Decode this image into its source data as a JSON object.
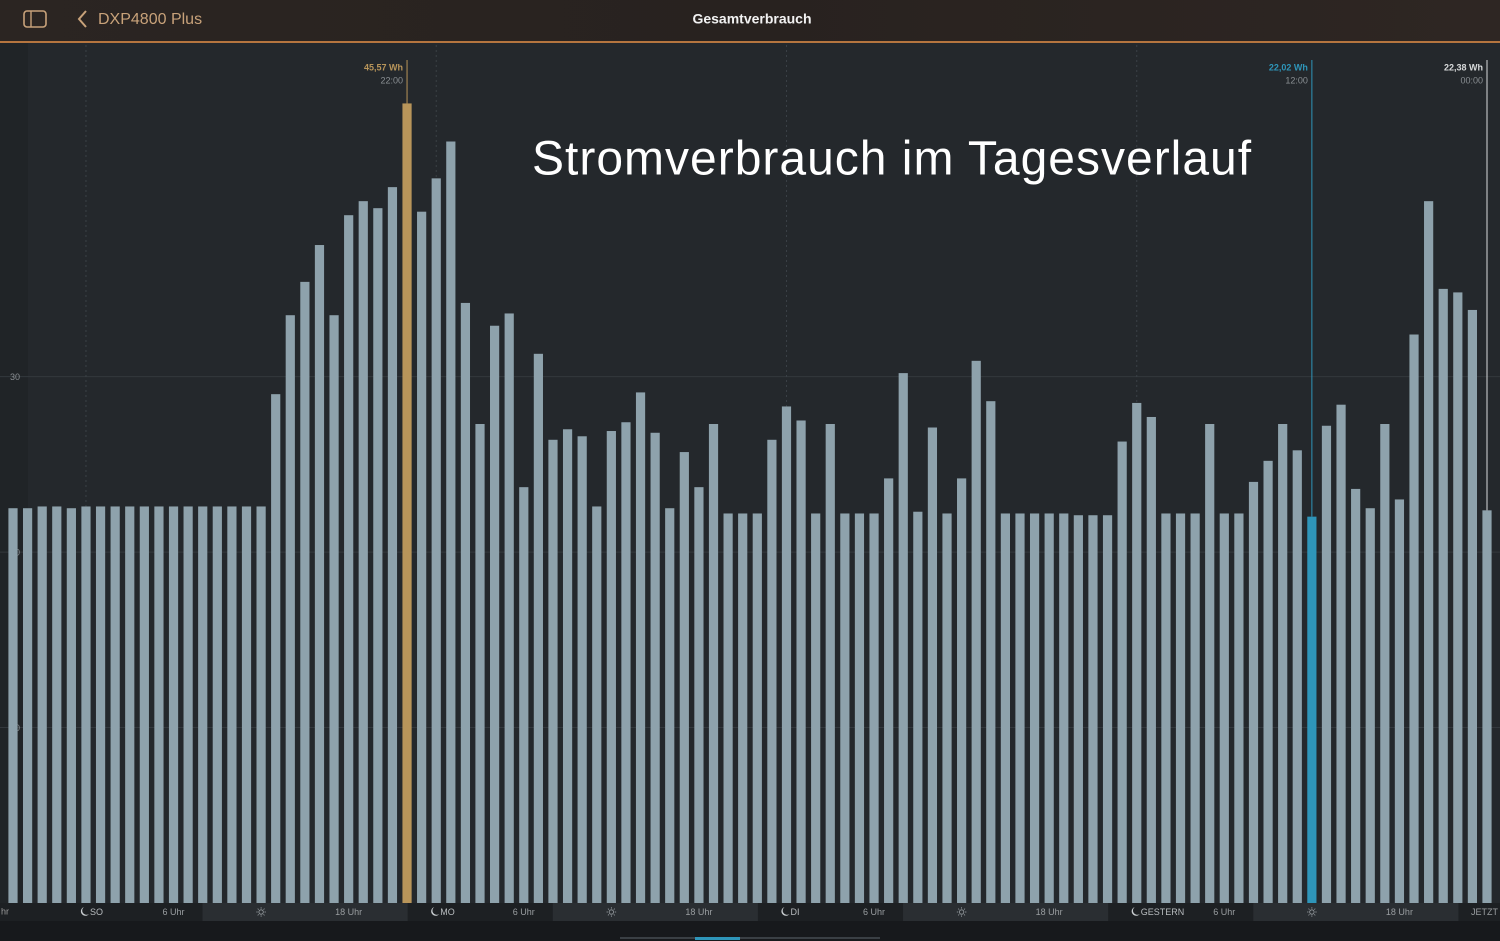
{
  "ui": {
    "back_label": "DXP4800 Plus",
    "page_title": "Gesamtverbrauch",
    "cut_axis_label": "hr"
  },
  "chart_data": {
    "type": "bar",
    "title": "Stromverbrauch im Tagesverlauf",
    "categories": [
      null,
      null,
      null,
      null,
      null,
      "SO",
      null,
      null,
      null,
      null,
      null,
      "6 Uhr",
      null,
      null,
      null,
      null,
      null,
      null,
      null,
      null,
      null,
      null,
      null,
      "18 Uhr",
      null,
      null,
      null,
      null,
      null,
      "MO",
      null,
      null,
      null,
      null,
      null,
      "6 Uhr",
      null,
      null,
      null,
      null,
      null,
      null,
      null,
      null,
      null,
      null,
      null,
      "18 Uhr",
      null,
      null,
      null,
      null,
      null,
      "DI",
      null,
      null,
      null,
      null,
      null,
      "6 Uhr",
      null,
      null,
      null,
      null,
      null,
      null,
      null,
      null,
      null,
      null,
      null,
      "18 Uhr",
      null,
      null,
      null,
      null,
      null,
      "GESTERN",
      null,
      null,
      null,
      null,
      null,
      "6 Uhr",
      null,
      null,
      null,
      null,
      null,
      null,
      null,
      null,
      null,
      null,
      null,
      "18 Uhr",
      null,
      null,
      null,
      null,
      null,
      "JETZT"
    ],
    "values": [
      22.5,
      22.5,
      22.6,
      22.6,
      22.5,
      22.6,
      22.6,
      22.6,
      22.6,
      22.6,
      22.6,
      22.6,
      22.6,
      22.6,
      22.6,
      22.6,
      22.6,
      22.6,
      29.0,
      33.5,
      35.4,
      37.5,
      33.5,
      39.2,
      40.0,
      39.6,
      40.8,
      45.57,
      39.4,
      41.3,
      43.4,
      34.2,
      27.3,
      32.9,
      33.6,
      23.7,
      31.3,
      26.4,
      27.0,
      26.6,
      22.6,
      26.9,
      27.4,
      29.1,
      26.8,
      22.5,
      25.7,
      23.7,
      27.3,
      22.2,
      22.2,
      22.2,
      26.4,
      28.3,
      27.5,
      22.2,
      27.3,
      22.2,
      22.2,
      22.2,
      24.2,
      30.2,
      22.3,
      27.1,
      22.2,
      24.2,
      30.9,
      28.6,
      22.2,
      22.2,
      22.2,
      22.2,
      22.2,
      22.1,
      22.1,
      22.1,
      26.3,
      28.5,
      27.7,
      22.2,
      22.2,
      22.2,
      27.3,
      22.2,
      22.2,
      24.0,
      25.2,
      27.3,
      25.8,
      22.02,
      27.2,
      28.4,
      23.6,
      22.5,
      27.3,
      23.0,
      32.4,
      40.0,
      35.0,
      34.8,
      33.8,
      22.38
    ],
    "value_labels": [
      null,
      null,
      null,
      null,
      null,
      null,
      null,
      null,
      null,
      null,
      null,
      null,
      null,
      null,
      null,
      null,
      null,
      null,
      null,
      null,
      null,
      null,
      null,
      null,
      null,
      null,
      null,
      "45,57 Wh",
      null,
      null,
      null,
      null,
      null,
      null,
      null,
      null,
      null,
      null,
      null,
      null,
      null,
      null,
      null,
      null,
      null,
      null,
      null,
      null,
      null,
      null,
      null,
      null,
      null,
      null,
      null,
      null,
      null,
      null,
      null,
      null,
      null,
      null,
      null,
      null,
      null,
      null,
      null,
      null,
      null,
      null,
      null,
      null,
      null,
      null,
      null,
      null,
      null,
      null,
      null,
      null,
      null,
      null,
      null,
      null,
      null,
      null,
      null,
      null,
      null,
      "22,02 Wh",
      null,
      null,
      null,
      null,
      null,
      null,
      null,
      null,
      null,
      null,
      null,
      "22,38 Wh"
    ],
    "tooltip_times": [
      null,
      null,
      null,
      null,
      null,
      null,
      null,
      null,
      null,
      null,
      null,
      null,
      null,
      null,
      null,
      null,
      null,
      null,
      null,
      null,
      null,
      null,
      null,
      null,
      null,
      null,
      null,
      "22:00",
      null,
      null,
      null,
      null,
      null,
      null,
      null,
      null,
      null,
      null,
      null,
      null,
      null,
      null,
      null,
      null,
      null,
      null,
      null,
      null,
      null,
      null,
      null,
      null,
      null,
      null,
      null,
      null,
      null,
      null,
      null,
      null,
      null,
      null,
      null,
      null,
      null,
      null,
      null,
      null,
      null,
      null,
      null,
      null,
      null,
      null,
      null,
      null,
      null,
      null,
      null,
      null,
      null,
      null,
      null,
      null,
      null,
      null,
      null,
      null,
      null,
      "12:00",
      null,
      null,
      null,
      null,
      null,
      null,
      null,
      null,
      null,
      null,
      null,
      "00:00"
    ],
    "highlight_colors": [
      null,
      null,
      null,
      null,
      null,
      null,
      null,
      null,
      null,
      null,
      null,
      null,
      null,
      null,
      null,
      null,
      null,
      null,
      null,
      null,
      null,
      null,
      null,
      null,
      null,
      null,
      null,
      "#b8955a",
      null,
      null,
      null,
      null,
      null,
      null,
      null,
      null,
      null,
      null,
      null,
      null,
      null,
      null,
      null,
      null,
      null,
      null,
      null,
      null,
      null,
      null,
      null,
      null,
      null,
      null,
      null,
      null,
      null,
      null,
      null,
      null,
      null,
      null,
      null,
      null,
      null,
      null,
      null,
      null,
      null,
      null,
      null,
      null,
      null,
      null,
      null,
      null,
      null,
      null,
      null,
      null,
      null,
      null,
      null,
      null,
      null,
      null,
      null,
      null,
      null,
      "#2e95b9",
      null,
      null,
      null,
      null,
      null,
      null,
      null,
      null,
      null,
      null,
      null,
      null
    ],
    "color": "#8ea2ac",
    "ylim": [
      0,
      48.9
    ],
    "yticks": [
      10,
      20,
      30
    ],
    "grid": true
  }
}
